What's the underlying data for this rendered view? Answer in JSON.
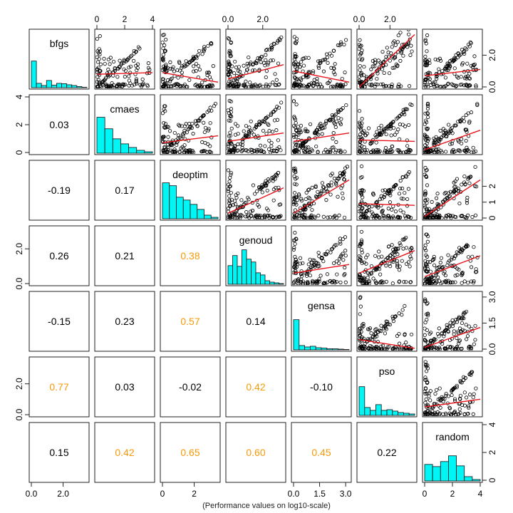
{
  "caption": "(Performance values on log10-scale)",
  "colors": {
    "histogram_fill": "#00F5F5",
    "regression_line": "#E8141B",
    "strong_correlation": "#F59A0A",
    "weak_correlation": "#000000",
    "points": "#000000"
  },
  "chart_data": {
    "type": "scatter-matrix",
    "variables": [
      "bfgs",
      "cmaes",
      "deoptim",
      "genoud",
      "gensa",
      "pso",
      "random"
    ],
    "diagonal": "histogram",
    "upper_panels": "scatter with red fitted line",
    "lower_panels": "correlation coefficients",
    "correlation_highlight_threshold": 0.3,
    "ranges": {
      "bfgs": [
        0,
        3.5
      ],
      "cmaes": [
        0,
        4
      ],
      "deoptim": [
        0,
        3.5
      ],
      "genoud": [
        0,
        3.2
      ],
      "gensa": [
        0,
        3.2
      ],
      "pso": [
        0,
        3.6
      ],
      "random": [
        0,
        4
      ]
    },
    "axes": {
      "top": {
        "cmaes": [
          "0",
          "2",
          "4"
        ],
        "genoud": [
          "0.0",
          "2.0"
        ],
        "pso": [
          "0.0",
          "2.0"
        ]
      },
      "bottom": {
        "bfgs": [
          "0.0",
          "2.0"
        ],
        "deoptim": [
          "0",
          "2"
        ],
        "gensa": [
          "0.0",
          "1.5",
          "3.0"
        ],
        "random": [
          "0",
          "2",
          "4"
        ]
      },
      "left": {
        "cmaes": [
          "0",
          "2",
          "4"
        ],
        "genoud": [
          "0.0",
          "2.0"
        ],
        "pso": [
          "0.0",
          "2.0"
        ]
      },
      "right": {
        "bfgs": [
          "0.0",
          "2.0"
        ],
        "deoptim": [
          "0",
          "1",
          "2"
        ],
        "gensa": [
          "0.0",
          "1.5",
          "3.0"
        ],
        "random": [
          "0",
          "2",
          "4"
        ]
      }
    },
    "histograms": {
      "bfgs": [
        0.74,
        0.12,
        0.06,
        0.2,
        0.07,
        0.12,
        0.11,
        0.08,
        0.06,
        0.03,
        0.01
      ],
      "cmaes": [
        1.0,
        0.68,
        0.4,
        0.26,
        0.16,
        0.08,
        0.04
      ],
      "deoptim": [
        1.0,
        0.92,
        0.6,
        0.52,
        0.4,
        0.26,
        0.1,
        0.04
      ],
      "genoud": [
        0.52,
        0.8,
        0.5,
        0.96,
        0.7,
        0.62,
        0.32,
        0.26,
        0.1,
        0.06,
        0.04,
        0.02
      ],
      "gensa": [
        0.84,
        0.12,
        0.08,
        0.1,
        0.06,
        0.05,
        0.03,
        0.03,
        0.02,
        0.01
      ],
      "pso": [
        0.8,
        0.22,
        0.14,
        0.3,
        0.14,
        0.16,
        0.12,
        0.08,
        0.06,
        0.04
      ],
      "random": [
        0.46,
        0.4,
        0.54,
        0.7,
        0.42,
        0.12,
        0.04
      ]
    },
    "correlations": [
      {
        "row": "cmaes",
        "col": "bfgs",
        "value": "0.03"
      },
      {
        "row": "deoptim",
        "col": "bfgs",
        "value": "-0.19"
      },
      {
        "row": "deoptim",
        "col": "cmaes",
        "value": "0.17"
      },
      {
        "row": "genoud",
        "col": "bfgs",
        "value": "0.26"
      },
      {
        "row": "genoud",
        "col": "cmaes",
        "value": "0.21"
      },
      {
        "row": "genoud",
        "col": "deoptim",
        "value": "0.38"
      },
      {
        "row": "gensa",
        "col": "bfgs",
        "value": "-0.15"
      },
      {
        "row": "gensa",
        "col": "cmaes",
        "value": "0.23"
      },
      {
        "row": "gensa",
        "col": "deoptim",
        "value": "0.57"
      },
      {
        "row": "gensa",
        "col": "genoud",
        "value": "0.14"
      },
      {
        "row": "pso",
        "col": "bfgs",
        "value": "0.77"
      },
      {
        "row": "pso",
        "col": "cmaes",
        "value": "0.03"
      },
      {
        "row": "pso",
        "col": "deoptim",
        "value": "-0.02"
      },
      {
        "row": "pso",
        "col": "genoud",
        "value": "0.42"
      },
      {
        "row": "pso",
        "col": "gensa",
        "value": "-0.10"
      },
      {
        "row": "random",
        "col": "bfgs",
        "value": "0.15"
      },
      {
        "row": "random",
        "col": "cmaes",
        "value": "0.42"
      },
      {
        "row": "random",
        "col": "deoptim",
        "value": "0.65"
      },
      {
        "row": "random",
        "col": "genoud",
        "value": "0.60"
      },
      {
        "row": "random",
        "col": "gensa",
        "value": "0.45"
      },
      {
        "row": "random",
        "col": "pso",
        "value": "0.22"
      }
    ],
    "fit_lines": [
      {
        "row": "bfgs",
        "col": "cmaes",
        "y0": 0.8,
        "y1": 0.9
      },
      {
        "row": "bfgs",
        "col": "deoptim",
        "y0": 0.9,
        "y1": 0.3
      },
      {
        "row": "bfgs",
        "col": "genoud",
        "y0": 0.5,
        "y1": 1.4
      },
      {
        "row": "bfgs",
        "col": "gensa",
        "y0": 1.0,
        "y1": 0.3
      },
      {
        "row": "bfgs",
        "col": "pso",
        "y0": 0.0,
        "y1": 3.3
      },
      {
        "row": "bfgs",
        "col": "random",
        "y0": 0.7,
        "y1": 1.1
      },
      {
        "row": "cmaes",
        "col": "deoptim",
        "y0": 0.7,
        "y1": 1.2
      },
      {
        "row": "cmaes",
        "col": "genoud",
        "y0": 0.8,
        "y1": 1.4
      },
      {
        "row": "cmaes",
        "col": "gensa",
        "y0": 0.8,
        "y1": 1.4
      },
      {
        "row": "cmaes",
        "col": "pso",
        "y0": 0.9,
        "y1": 0.8
      },
      {
        "row": "cmaes",
        "col": "random",
        "y0": 0.2,
        "y1": 1.6
      },
      {
        "row": "deoptim",
        "col": "genoud",
        "y0": 0.3,
        "y1": 1.9
      },
      {
        "row": "deoptim",
        "col": "gensa",
        "y0": 0.3,
        "y1": 2.4
      },
      {
        "row": "deoptim",
        "col": "pso",
        "y0": 0.9,
        "y1": 0.8
      },
      {
        "row": "deoptim",
        "col": "random",
        "y0": 0.1,
        "y1": 2.4
      },
      {
        "row": "genoud",
        "col": "gensa",
        "y0": 0.6,
        "y1": 1.1
      },
      {
        "row": "genoud",
        "col": "pso",
        "y0": 0.6,
        "y1": 1.9
      },
      {
        "row": "genoud",
        "col": "random",
        "y0": 0.4,
        "y1": 1.6
      },
      {
        "row": "gensa",
        "col": "pso",
        "y0": 0.55,
        "y1": 0.05
      },
      {
        "row": "gensa",
        "col": "random",
        "y0": 0.1,
        "y1": 1.25
      },
      {
        "row": "pso",
        "col": "random",
        "y0": 0.5,
        "y1": 1.0
      }
    ]
  }
}
